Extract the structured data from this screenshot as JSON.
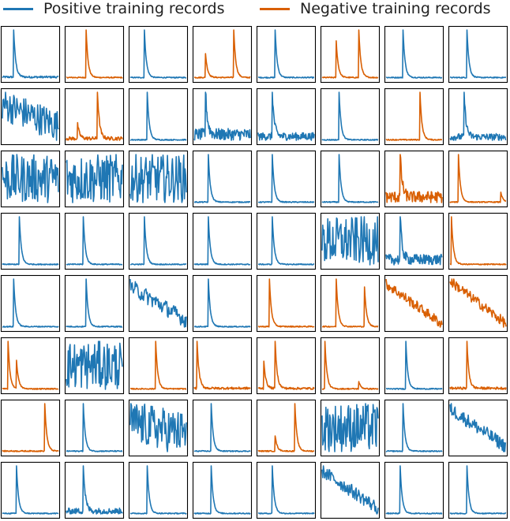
{
  "legend": {
    "positive": "Positive training records",
    "negative": "Negative training records"
  },
  "colors": {
    "positive": "#1f77b4",
    "negative": "#d95f02"
  },
  "chart_data": {
    "type": "line",
    "title": "",
    "layout_rows": 8,
    "layout_cols": 8,
    "series_names": [
      "Positive training records",
      "Negative training records"
    ],
    "legend_placement": "top",
    "grid": false,
    "panels": [
      {
        "c": "pos",
        "k": "spike",
        "p": [
          0.2
        ],
        "n": 0.02
      },
      {
        "c": "neg",
        "k": "spike",
        "p": [
          0.35
        ],
        "n": 0.01
      },
      {
        "c": "pos",
        "k": "spike",
        "p": [
          0.25
        ],
        "n": 0.01
      },
      {
        "c": "neg",
        "k": "spike",
        "p": [
          0.2,
          0.7
        ],
        "a": [
          0.45,
          1.0
        ],
        "n": 0.01
      },
      {
        "c": "pos",
        "k": "spike",
        "p": [
          0.3
        ],
        "n": 0.01
      },
      {
        "c": "neg",
        "k": "spike",
        "p": [
          0.25,
          0.65
        ],
        "a": [
          0.7,
          1.0
        ],
        "n": 0.01
      },
      {
        "c": "pos",
        "k": "spike",
        "p": [
          0.3
        ],
        "n": 0.01
      },
      {
        "c": "pos",
        "k": "spike",
        "p": [
          0.3
        ],
        "n": 0.01
      },
      {
        "c": "pos",
        "k": "noise",
        "m": 0.65,
        "s": -0.3,
        "n": 0.45
      },
      {
        "c": "neg",
        "k": "spike",
        "p": [
          0.2,
          0.55
        ],
        "a": [
          0.25,
          0.9
        ],
        "n": 0.03
      },
      {
        "c": "pos",
        "k": "spike",
        "p": [
          0.3
        ],
        "n": 0.01
      },
      {
        "c": "pos",
        "k": "spike",
        "p": [
          0.2
        ],
        "a": [
          0.95
        ],
        "n": 0.12
      },
      {
        "c": "pos",
        "k": "spike",
        "p": [
          0.25
        ],
        "a": [
          0.85
        ],
        "n": 0.07
      },
      {
        "c": "pos",
        "k": "spike",
        "p": [
          0.3
        ],
        "n": 0.01
      },
      {
        "c": "neg",
        "k": "spike",
        "p": [
          0.6
        ],
        "n": 0.01
      },
      {
        "c": "pos",
        "k": "spike",
        "p": [
          0.25
        ],
        "a": [
          0.95
        ],
        "n": 0.07
      },
      {
        "c": "pos",
        "k": "noise",
        "m": 0.55,
        "s": 0,
        "n": 0.6
      },
      {
        "c": "pos",
        "k": "noise",
        "m": 0.5,
        "s": 0,
        "n": 0.65
      },
      {
        "c": "pos",
        "k": "noise",
        "m": 0.5,
        "s": 0,
        "n": 0.55
      },
      {
        "c": "pos",
        "k": "spike",
        "p": [
          0.25
        ],
        "n": 0.01
      },
      {
        "c": "pos",
        "k": "spike",
        "p": [
          0.25
        ],
        "n": 0.01
      },
      {
        "c": "pos",
        "k": "spike",
        "p": [
          0.3
        ],
        "n": 0.01
      },
      {
        "c": "neg",
        "k": "spike",
        "p": [
          0.25
        ],
        "a": [
          0.95
        ],
        "n": 0.12
      },
      {
        "c": "neg",
        "k": "spike",
        "p": [
          0.15,
          0.9
        ],
        "a": [
          1.0,
          0.25
        ],
        "n": 0.01
      },
      {
        "c": "pos",
        "k": "spike",
        "p": [
          0.3
        ],
        "n": 0.01
      },
      {
        "c": "pos",
        "k": "spike",
        "p": [
          0.3
        ],
        "n": 0.01
      },
      {
        "c": "pos",
        "k": "spike",
        "p": [
          0.25
        ],
        "n": 0.01
      },
      {
        "c": "pos",
        "k": "spike",
        "p": [
          0.25
        ],
        "n": 0.01
      },
      {
        "c": "pos",
        "k": "spike",
        "p": [
          0.25
        ],
        "n": 0.01
      },
      {
        "c": "pos",
        "k": "noise",
        "m": 0.5,
        "s": 0,
        "n": 0.45
      },
      {
        "c": "pos",
        "k": "spike",
        "p": [
          0.25
        ],
        "a": [
          0.85
        ],
        "n": 0.1
      },
      {
        "c": "neg",
        "k": "spike",
        "p": [
          0.02
        ],
        "n": 0.01
      },
      {
        "c": "pos",
        "k": "spike",
        "p": [
          0.2
        ],
        "n": 0.01
      },
      {
        "c": "pos",
        "k": "spike",
        "p": [
          0.35
        ],
        "n": 0.01
      },
      {
        "c": "pos",
        "k": "noise",
        "m": 0.55,
        "s": -0.75,
        "n": 0.35
      },
      {
        "c": "pos",
        "k": "spike",
        "p": [
          0.25
        ],
        "n": 0.01
      },
      {
        "c": "neg",
        "k": "spike",
        "p": [
          0.2
        ],
        "a": [
          0.9
        ],
        "n": 0.01
      },
      {
        "c": "neg",
        "k": "spike",
        "p": [
          0.25,
          0.75
        ],
        "a": [
          0.9,
          0.85
        ],
        "n": 0.01
      },
      {
        "c": "neg",
        "k": "noise",
        "m": 0.6,
        "s": -0.7,
        "n": 0.18
      },
      {
        "c": "neg",
        "k": "noise",
        "m": 0.55,
        "s": -0.75,
        "n": 0.18
      },
      {
        "c": "neg",
        "k": "spike",
        "p": [
          0.1,
          0.25
        ],
        "a": [
          0.9,
          0.55
        ],
        "n": 0.01
      },
      {
        "c": "pos",
        "k": "noise",
        "m": 0.55,
        "s": 0,
        "n": 0.7
      },
      {
        "c": "neg",
        "k": "spike",
        "p": [
          0.45
        ],
        "n": 0.01
      },
      {
        "c": "neg",
        "k": "spike",
        "p": [
          0.05
        ],
        "a": [
          0.85
        ],
        "n": 0.02
      },
      {
        "c": "neg",
        "k": "spike",
        "p": [
          0.1,
          0.3
        ],
        "a": [
          0.55,
          1.0
        ],
        "n": 0.02
      },
      {
        "c": "neg",
        "k": "spike",
        "p": [
          0.05,
          0.65
        ],
        "a": [
          0.85,
          0.15
        ],
        "n": 0.01
      },
      {
        "c": "pos",
        "k": "spike",
        "p": [
          0.35
        ],
        "n": 0.01
      },
      {
        "c": "neg",
        "k": "spike",
        "p": [
          0.3
        ],
        "a": [
          0.85
        ],
        "n": 0.02
      },
      {
        "c": "neg",
        "k": "spike",
        "p": [
          0.75
        ],
        "n": 0.01
      },
      {
        "c": "pos",
        "k": "spike",
        "p": [
          0.3
        ],
        "n": 0.01
      },
      {
        "c": "pos",
        "k": "noise",
        "m": 0.5,
        "s": -0.1,
        "n": 0.4
      },
      {
        "c": "pos",
        "k": "spike",
        "p": [
          0.3
        ],
        "n": 0.01
      },
      {
        "c": "neg",
        "k": "spike",
        "p": [
          0.3,
          0.65
        ],
        "a": [
          0.3,
          1.0
        ],
        "n": 0.01
      },
      {
        "c": "pos",
        "k": "noise",
        "m": 0.45,
        "s": 0,
        "n": 0.45
      },
      {
        "c": "pos",
        "k": "spike",
        "p": [
          0.3
        ],
        "n": 0.01
      },
      {
        "c": "pos",
        "k": "noise",
        "m": 0.55,
        "s": -0.7,
        "n": 0.25
      },
      {
        "c": "pos",
        "k": "spike",
        "p": [
          0.25
        ],
        "n": 0.01
      },
      {
        "c": "pos",
        "k": "spike",
        "p": [
          0.3
        ],
        "a": [
          0.85
        ],
        "n": 0.05
      },
      {
        "c": "pos",
        "k": "spike",
        "p": [
          0.3
        ],
        "n": 0.01
      },
      {
        "c": "pos",
        "k": "spike",
        "p": [
          0.3
        ],
        "n": 0.01
      },
      {
        "c": "pos",
        "k": "spike",
        "p": [
          0.25
        ],
        "n": 0.01
      },
      {
        "c": "pos",
        "k": "noise",
        "m": 0.6,
        "s": -0.7,
        "n": 0.25
      },
      {
        "c": "pos",
        "k": "spike",
        "p": [
          0.25
        ],
        "n": 0.01
      },
      {
        "c": "pos",
        "k": "spike",
        "p": [
          0.3
        ],
        "n": 0.01
      }
    ]
  }
}
